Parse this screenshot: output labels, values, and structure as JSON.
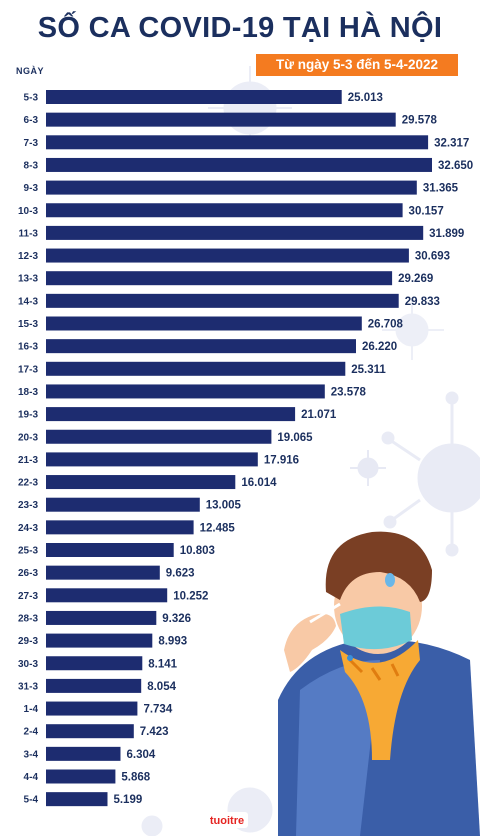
{
  "header": {
    "title": "SỐ CA COVID-19 TẠI HÀ NỘI",
    "date_range": "Từ ngày 5-3 đến 5-4-2022",
    "axis_label": "NGÀY"
  },
  "logo": {
    "text": "tuoitre",
    "color": "#e52421"
  },
  "colors": {
    "bar": "#1d2c70",
    "text": "#1b2f5e",
    "accent": "#f47b20",
    "virus": "#d8dcee"
  },
  "chart_data": {
    "type": "bar",
    "orientation": "horizontal",
    "title": "SỐ CA COVID-19 TẠI HÀ NỘI",
    "subtitle": "Từ ngày 5-3 đến 5-4-2022",
    "ylabel": "NGÀY",
    "xlim": [
      0,
      34000
    ],
    "grid": false,
    "categories": [
      "5-3",
      "6-3",
      "7-3",
      "8-3",
      "9-3",
      "10-3",
      "11-3",
      "12-3",
      "13-3",
      "14-3",
      "15-3",
      "16-3",
      "17-3",
      "18-3",
      "19-3",
      "20-3",
      "21-3",
      "22-3",
      "23-3",
      "24-3",
      "25-3",
      "26-3",
      "27-3",
      "28-3",
      "29-3",
      "30-3",
      "31-3",
      "1-4",
      "2-4",
      "3-4",
      "4-4",
      "5-4"
    ],
    "values": [
      25013,
      29578,
      32317,
      32650,
      31365,
      30157,
      31899,
      30693,
      29269,
      29833,
      26708,
      26220,
      25311,
      23578,
      21071,
      19065,
      17916,
      16014,
      13005,
      12485,
      10803,
      9623,
      10252,
      9326,
      8993,
      8141,
      8054,
      7734,
      7423,
      6304,
      5868,
      5199
    ],
    "value_labels": [
      "25.013",
      "29.578",
      "32.317",
      "32.650",
      "31.365",
      "30.157",
      "31.899",
      "30.693",
      "29.269",
      "29.833",
      "26.708",
      "26.220",
      "25.311",
      "23.578",
      "21.071",
      "19.065",
      "17.916",
      "16.014",
      "13.005",
      "12.485",
      "10.803",
      "9.623",
      "10.252",
      "9.326",
      "8.993",
      "8.141",
      "8.054",
      "7.734",
      "7.423",
      "6.304",
      "5.868",
      "5.199"
    ]
  }
}
